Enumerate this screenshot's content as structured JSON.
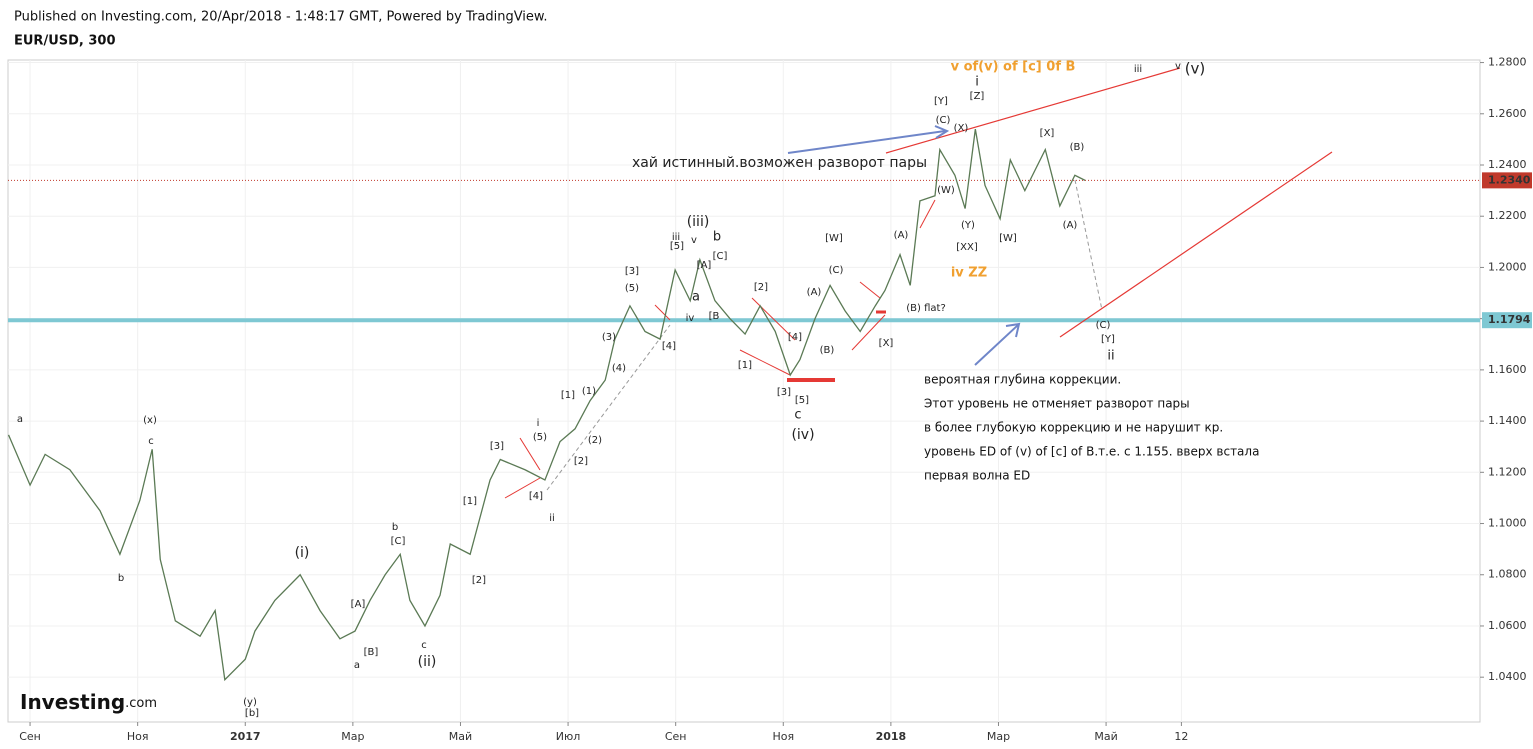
{
  "header": {
    "published": "Published on Investing.com, 20/Apr/2018 - 1:48:17 GMT, Powered by TradingView.",
    "symbol": "EUR/USD, 300"
  },
  "chart_data": {
    "type": "line",
    "x": [
      -0.4,
      0,
      0.28,
      0.74,
      1.3,
      1.67,
      2.04,
      2.27,
      2.42,
      2.7,
      3.16,
      3.44,
      3.62,
      4.0,
      4.18,
      4.55,
      5.02,
      5.39,
      5.76,
      6.04,
      6.32,
      6.6,
      6.88,
      7.06,
      7.34,
      7.62,
      7.81,
      8.18,
      8.55,
      8.74,
      9.2,
      9.57,
      9.85,
      10.13,
      10.41,
      10.69,
      10.87,
      11.15,
      11.43,
      11.71,
      11.99,
      12.27,
      12.45,
      12.73,
      13.01,
      13.29,
      13.57,
      13.85,
      14.13,
      14.31,
      14.59,
      14.87,
      15.15,
      15.43,
      15.71,
      15.89,
      16.17,
      16.36,
      16.54,
      16.82,
      16.91,
      17.19,
      17.38,
      17.57,
      17.75,
      18.03,
      18.22,
      18.49,
      18.87,
      19.14,
      19.42,
      19.61
    ],
    "series": [
      {
        "color": "#5b7a55",
        "values": [
          1.1346,
          1.115,
          1.127,
          1.121,
          1.105,
          1.088,
          1.109,
          1.129,
          1.086,
          1.062,
          1.056,
          1.066,
          1.039,
          1.047,
          1.058,
          1.07,
          1.08,
          1.066,
          1.055,
          1.058,
          1.07,
          1.08,
          1.088,
          1.07,
          1.06,
          1.072,
          1.092,
          1.088,
          1.117,
          1.125,
          1.121,
          1.117,
          1.132,
          1.137,
          1.148,
          1.156,
          1.172,
          1.185,
          1.175,
          1.172,
          1.199,
          1.187,
          1.203,
          1.187,
          1.18,
          1.174,
          1.185,
          1.175,
          1.158,
          1.164,
          1.18,
          1.193,
          1.183,
          1.175,
          1.185,
          1.191,
          1.205,
          1.193,
          1.226,
          1.228,
          1.246,
          1.236,
          1.223,
          1.254,
          1.232,
          1.219,
          1.242,
          1.23,
          1.246,
          1.224,
          1.236,
          1.234
        ]
      }
    ],
    "xlim": [
      -0.41,
      26.95
    ],
    "ylim": [
      1.0225,
      1.281
    ],
    "xticks": [
      {
        "value": 0,
        "label": "Сен"
      },
      {
        "value": 2,
        "label": "Ноя"
      },
      {
        "value": 4,
        "label": "2017"
      },
      {
        "value": 6,
        "label": "Мар"
      },
      {
        "value": 8,
        "label": "Май"
      },
      {
        "value": 10,
        "label": "Июл"
      },
      {
        "value": 12,
        "label": "Сен"
      },
      {
        "value": 14,
        "label": "Ноя"
      },
      {
        "value": 16,
        "label": "2018"
      },
      {
        "value": 18,
        "label": "Мар"
      },
      {
        "value": 20,
        "label": "Май"
      },
      {
        "value": 21.4,
        "label": "12"
      }
    ],
    "yticks": [
      {
        "value": 1.28,
        "label": "1.2800"
      },
      {
        "value": 1.26,
        "label": "1.2600"
      },
      {
        "value": 1.24,
        "label": "1.2400"
      },
      {
        "value": 1.22,
        "label": "1.2200"
      },
      {
        "value": 1.2,
        "label": "1.2000"
      },
      {
        "value": 1.18,
        "label": "1.1800"
      },
      {
        "value": 1.16,
        "label": "1.1600"
      },
      {
        "value": 1.14,
        "label": "1.1400"
      },
      {
        "value": 1.12,
        "label": "1.1200"
      },
      {
        "value": 1.1,
        "label": "1.1000"
      },
      {
        "value": 1.08,
        "label": "1.0800"
      },
      {
        "value": 1.06,
        "label": "1.0600"
      },
      {
        "value": 1.04,
        "label": "1.0400"
      }
    ],
    "grid": true,
    "hlines": [
      {
        "value": 1.234,
        "label": "1.2340",
        "color": "#c0392b"
      },
      {
        "value": 1.1794,
        "label": "1.1794",
        "color": "#7ec8d3"
      }
    ],
    "wave_labels": [
      "a",
      "(x)",
      "c",
      "b",
      "(y)",
      "[b]",
      "(i)",
      "b",
      "[C]",
      "[A]",
      "[B]",
      "a",
      "c",
      "(ii)",
      "[1]",
      "[2]",
      "[3]",
      "[4]",
      "(5)",
      "i",
      "ii",
      "[1]",
      "[2]",
      "(1)",
      "(2)",
      "(3)",
      "(4)",
      "(5)",
      "[3]",
      "[4]",
      "iii",
      "[5]",
      "(iii)",
      "v",
      "b",
      "[C]",
      "[A]",
      "a",
      "iv",
      "[B",
      "[1]",
      "[2]",
      "[4]",
      "[3]",
      "[5]",
      "c",
      "(iv)",
      "(A)",
      "(B)",
      "(C)",
      "[W]",
      "[X]",
      "(A)",
      "(B) flat?",
      "[Y]",
      "(C)",
      "(X)",
      "[Z]",
      "i",
      "(W)",
      "(Y)",
      "[XX]",
      "[W]",
      "[X]",
      "(B)",
      "(A)",
      "(C)",
      "[Y]",
      "ii",
      "iii",
      "v",
      "(v)",
      "iv ZZ",
      "v of(v) of [c] 0f B"
    ],
    "headline": "хай истинный.возможен разворот пары",
    "notes": [
      "вероятная глубина коррекции.",
      "Этот уровень не отменяет разворот пары",
      "в более глубокую коррекцию и не нарушит кр.",
      "уровень ED of (v) of [c] of B.т.е. с 1.155. вверх встала",
      "первая волна ED"
    ],
    "brand": "Investing",
    "brand_suffix": ".com"
  }
}
